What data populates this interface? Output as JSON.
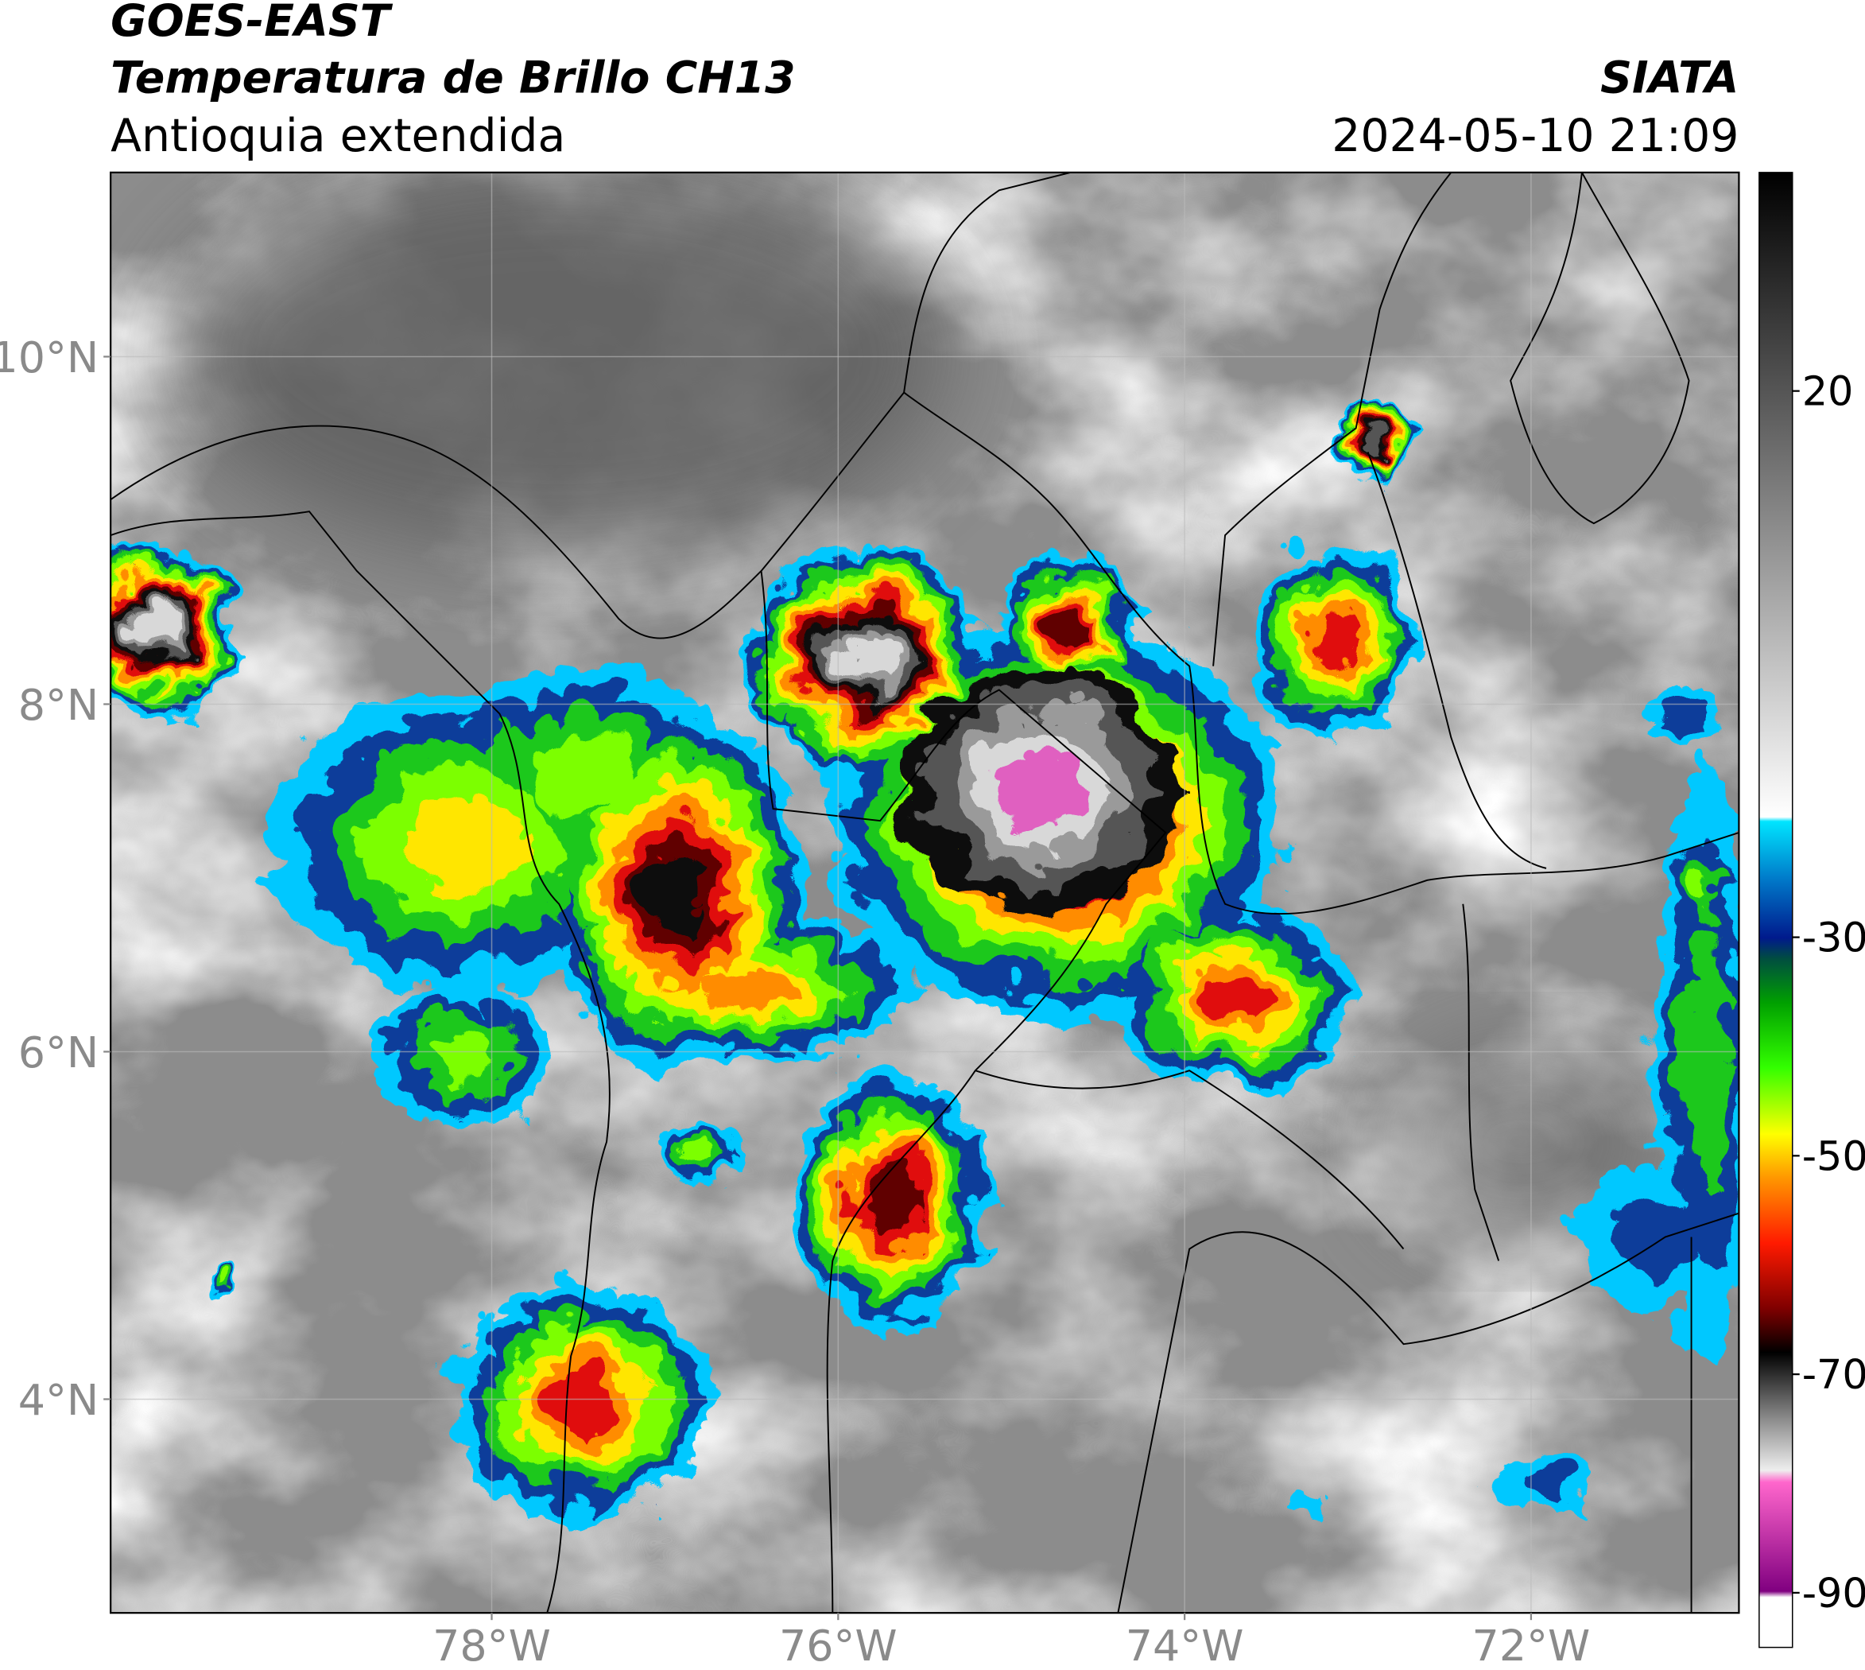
{
  "chart_data": {
    "type": "map",
    "title": "GOES-EAST",
    "subtitle": "Temperatura de Brillo CH13",
    "region": "Antioquia extendida",
    "source": "SIATA",
    "datetime": "2024-05-10 21:09",
    "xlim": [
      -80.2,
      -70.8
    ],
    "ylim": [
      2.77,
      11.06
    ],
    "xticks": [
      {
        "value": -78,
        "label": "78°W"
      },
      {
        "value": -76,
        "label": "76°W"
      },
      {
        "value": -74,
        "label": "74°W"
      },
      {
        "value": -72,
        "label": "72°W"
      }
    ],
    "yticks": [
      {
        "value": 10,
        "label": "10°N"
      },
      {
        "value": 8,
        "label": "8°N"
      },
      {
        "value": 6,
        "label": "6°N"
      },
      {
        "value": 4,
        "label": "4°N"
      }
    ],
    "grid": true,
    "colorbar": {
      "lim": [
        -95,
        40
      ],
      "ticks": [
        20,
        -30,
        -50,
        -70,
        -90
      ]
    }
  }
}
